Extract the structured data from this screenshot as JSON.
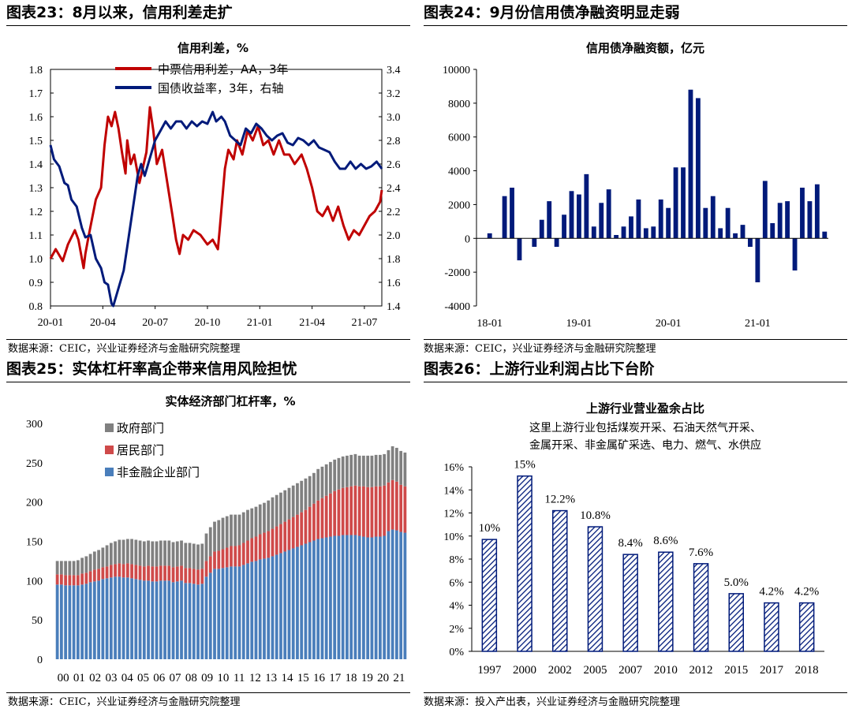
{
  "panels": [
    {
      "title": "图表23：8月以来，信用利差走扩",
      "source": "数据来源：CEIC，兴业证券经济与金融研究院整理"
    },
    {
      "title": "图表24：9月份信用债净融资明显走弱",
      "source": "数据来源：CEIC，兴业证券经济与金融研究院整理"
    },
    {
      "title": "图表25：实体杠杆率高企带来信用风险担忧",
      "source": "数据来源：CEIC，兴业证券经济与金融研究院整理"
    },
    {
      "title": "图表26：上游行业利润占比下台阶",
      "source": "数据来源：投入产出表，兴业证券经济与金融研究院整理"
    }
  ],
  "chart_data": [
    {
      "type": "line",
      "title": "信用利差，%",
      "x_ticks": [
        "20-01",
        "20-04",
        "20-07",
        "20-10",
        "21-01",
        "21-04",
        "21-07"
      ],
      "y_left": {
        "ylim": [
          0.8,
          1.8
        ],
        "ticks": [
          "0.8",
          "0.9",
          "1.0",
          "1.1",
          "1.2",
          "1.3",
          "1.4",
          "1.5",
          "1.6",
          "1.7",
          "1.8"
        ]
      },
      "y_right": {
        "ylim": [
          1.4,
          3.4
        ],
        "ticks": [
          "1.4",
          "1.6",
          "1.8",
          "2.0",
          "2.2",
          "2.4",
          "2.6",
          "2.8",
          "3.0",
          "3.2",
          "3.4"
        ]
      },
      "series": [
        {
          "name": "中票信用利差，AA，3年",
          "axis": "left",
          "color": "#c00000",
          "points": [
            [
              0,
              1.0
            ],
            [
              0.3,
              1.04
            ],
            [
              0.7,
              0.99
            ],
            [
              1.0,
              1.06
            ],
            [
              1.4,
              1.12
            ],
            [
              1.6,
              1.08
            ],
            [
              1.9,
              0.96
            ],
            [
              2.0,
              1.02
            ],
            [
              2.2,
              1.1
            ],
            [
              2.6,
              1.25
            ],
            [
              2.9,
              1.3
            ],
            [
              3.1,
              1.48
            ],
            [
              3.3,
              1.6
            ],
            [
              3.5,
              1.56
            ],
            [
              3.7,
              1.62
            ],
            [
              3.9,
              1.55
            ],
            [
              4.1,
              1.45
            ],
            [
              4.3,
              1.36
            ],
            [
              4.4,
              1.5
            ],
            [
              4.6,
              1.4
            ],
            [
              4.8,
              1.44
            ],
            [
              5.1,
              1.32
            ],
            [
              5.5,
              1.45
            ],
            [
              5.7,
              1.64
            ],
            [
              5.9,
              1.54
            ],
            [
              6.1,
              1.4
            ],
            [
              6.4,
              1.46
            ],
            [
              6.7,
              1.32
            ],
            [
              7.0,
              1.18
            ],
            [
              7.2,
              1.08
            ],
            [
              7.4,
              1.02
            ],
            [
              7.6,
              1.1
            ],
            [
              7.9,
              1.08
            ],
            [
              8.2,
              1.12
            ],
            [
              8.6,
              1.1
            ],
            [
              9.0,
              1.06
            ],
            [
              9.3,
              1.08
            ],
            [
              9.6,
              1.04
            ],
            [
              9.7,
              1.12
            ],
            [
              10.0,
              1.38
            ],
            [
              10.2,
              1.46
            ],
            [
              10.5,
              1.42
            ],
            [
              10.7,
              1.5
            ],
            [
              11.0,
              1.44
            ],
            [
              11.3,
              1.54
            ],
            [
              11.6,
              1.5
            ],
            [
              11.9,
              1.56
            ],
            [
              12.2,
              1.48
            ],
            [
              12.5,
              1.5
            ],
            [
              12.8,
              1.44
            ],
            [
              13.1,
              1.5
            ],
            [
              13.4,
              1.44
            ],
            [
              13.7,
              1.44
            ],
            [
              14.0,
              1.4
            ],
            [
              14.4,
              1.44
            ],
            [
              14.7,
              1.38
            ],
            [
              15.0,
              1.3
            ],
            [
              15.3,
              1.2
            ],
            [
              15.6,
              1.18
            ],
            [
              15.9,
              1.22
            ],
            [
              16.2,
              1.16
            ],
            [
              16.5,
              1.22
            ],
            [
              16.8,
              1.14
            ],
            [
              17.1,
              1.08
            ],
            [
              17.4,
              1.12
            ],
            [
              17.7,
              1.1
            ],
            [
              18.0,
              1.14
            ],
            [
              18.3,
              1.18
            ],
            [
              18.6,
              1.2
            ],
            [
              18.9,
              1.24
            ],
            [
              19.0,
              1.29
            ]
          ]
        },
        {
          "name": "国债收益率，3年，右轴",
          "axis": "right",
          "color": "#001a7a",
          "points": [
            [
              0,
              2.76
            ],
            [
              0.2,
              2.64
            ],
            [
              0.5,
              2.58
            ],
            [
              0.8,
              2.44
            ],
            [
              1.0,
              2.42
            ],
            [
              1.2,
              2.3
            ],
            [
              1.5,
              2.24
            ],
            [
              1.8,
              2.06
            ],
            [
              2.0,
              1.98
            ],
            [
              2.3,
              2.0
            ],
            [
              2.6,
              1.8
            ],
            [
              2.9,
              1.72
            ],
            [
              3.1,
              1.6
            ],
            [
              3.3,
              1.58
            ],
            [
              3.5,
              1.42
            ],
            [
              3.6,
              1.4
            ],
            [
              3.8,
              1.5
            ],
            [
              4.0,
              1.6
            ],
            [
              4.2,
              1.7
            ],
            [
              4.4,
              1.9
            ],
            [
              4.6,
              2.1
            ],
            [
              4.8,
              2.3
            ],
            [
              5.0,
              2.5
            ],
            [
              5.2,
              2.6
            ],
            [
              5.4,
              2.5
            ],
            [
              5.6,
              2.6
            ],
            [
              5.8,
              2.7
            ],
            [
              6.0,
              2.8
            ],
            [
              6.3,
              2.88
            ],
            [
              6.6,
              2.96
            ],
            [
              6.9,
              2.9
            ],
            [
              7.2,
              2.96
            ],
            [
              7.5,
              2.96
            ],
            [
              7.8,
              2.9
            ],
            [
              8.1,
              2.96
            ],
            [
              8.4,
              2.92
            ],
            [
              8.7,
              2.96
            ],
            [
              9.0,
              2.94
            ],
            [
              9.3,
              3.04
            ],
            [
              9.5,
              2.96
            ],
            [
              9.8,
              3.0
            ],
            [
              10.0,
              2.96
            ],
            [
              10.3,
              2.84
            ],
            [
              10.6,
              2.8
            ],
            [
              10.9,
              2.76
            ],
            [
              11.2,
              2.9
            ],
            [
              11.5,
              2.86
            ],
            [
              11.8,
              2.94
            ],
            [
              12.1,
              2.9
            ],
            [
              12.4,
              2.84
            ],
            [
              12.7,
              2.8
            ],
            [
              13.0,
              2.84
            ],
            [
              13.3,
              2.86
            ],
            [
              13.6,
              2.78
            ],
            [
              13.9,
              2.76
            ],
            [
              14.2,
              2.82
            ],
            [
              14.5,
              2.8
            ],
            [
              14.8,
              2.76
            ],
            [
              15.1,
              2.8
            ],
            [
              15.4,
              2.74
            ],
            [
              15.7,
              2.72
            ],
            [
              16.0,
              2.7
            ],
            [
              16.3,
              2.62
            ],
            [
              16.6,
              2.56
            ],
            [
              16.9,
              2.56
            ],
            [
              17.2,
              2.62
            ],
            [
              17.5,
              2.56
            ],
            [
              17.8,
              2.6
            ],
            [
              18.1,
              2.56
            ],
            [
              18.4,
              2.58
            ],
            [
              18.7,
              2.62
            ],
            [
              19.0,
              2.56
            ]
          ]
        }
      ]
    },
    {
      "type": "bar",
      "title": "信用债净融资额，亿元",
      "x_ticks": [
        "18-01",
        "19-01",
        "20-01",
        "21-01"
      ],
      "ylim": [
        -4000,
        10000
      ],
      "y_ticks": [
        "-4000",
        "-2000",
        "0",
        "2000",
        "4000",
        "6000",
        "8000",
        "10000"
      ],
      "color": "#001a7a",
      "values": [
        300,
        0,
        2500,
        3000,
        -1300,
        0,
        -500,
        1100,
        2200,
        -500,
        1400,
        2800,
        2600,
        3800,
        700,
        2100,
        2900,
        200,
        700,
        1300,
        2300,
        600,
        700,
        2300,
        1800,
        4200,
        4200,
        8800,
        8300,
        1800,
        2500,
        600,
        1800,
        300,
        800,
        -500,
        -2600,
        3400,
        900,
        2100,
        2200,
        -1900,
        3000,
        2200,
        3200,
        400
      ]
    },
    {
      "type": "bar",
      "stacked": true,
      "title": "实体经济部门杠杆率，%",
      "x_ticks": [
        "00",
        "01",
        "02",
        "03",
        "04",
        "05",
        "06",
        "07",
        "08",
        "09",
        "10",
        "11",
        "12",
        "13",
        "14",
        "15",
        "16",
        "17",
        "18",
        "19",
        "20",
        "21"
      ],
      "ylim": [
        0,
        300
      ],
      "y_ticks": [
        "0",
        "50",
        "100",
        "150",
        "200",
        "250",
        "300"
      ],
      "series": [
        {
          "name": "非金融企业部门",
          "color": "#4a7ebb",
          "values": [
            95,
            95,
            94,
            94,
            94,
            94,
            95,
            96,
            98,
            99,
            100,
            102,
            103,
            104,
            105,
            105,
            104,
            104,
            103,
            102,
            101,
            100,
            100,
            99,
            99,
            100,
            100,
            100,
            98,
            99,
            100,
            97,
            97,
            96,
            95,
            96,
            105,
            110,
            115,
            115,
            116,
            117,
            118,
            118,
            118,
            120,
            122,
            124,
            125,
            127,
            128,
            129,
            131,
            133,
            135,
            137,
            139,
            141,
            143,
            145,
            147,
            149,
            151,
            153,
            154,
            155,
            156,
            157,
            157,
            158,
            158,
            158,
            158,
            157,
            156,
            155,
            155,
            156,
            156,
            157,
            163,
            165,
            164,
            162,
            161
          ]
        },
        {
          "name": "居民部门",
          "color": "#cf4a4a",
          "values": [
            13,
            13,
            13,
            13,
            13,
            13,
            14,
            14,
            14,
            15,
            15,
            15,
            15,
            16,
            16,
            17,
            17,
            18,
            18,
            18,
            18,
            18,
            19,
            19,
            19,
            19,
            19,
            19,
            19,
            19,
            19,
            19,
            19,
            19,
            19,
            19,
            20,
            21,
            22,
            23,
            24,
            25,
            26,
            26,
            27,
            28,
            29,
            30,
            31,
            32,
            33,
            34,
            35,
            36,
            37,
            38,
            39,
            40,
            41,
            42,
            43,
            45,
            47,
            49,
            51,
            53,
            55,
            57,
            59,
            60,
            61,
            62,
            63,
            63,
            64,
            64,
            64,
            64,
            64,
            64,
            62,
            63,
            62,
            60,
            59
          ]
        },
        {
          "name": "政府部门",
          "color": "#808080",
          "values": [
            17,
            17,
            18,
            18,
            18,
            19,
            20,
            21,
            22,
            23,
            24,
            25,
            27,
            28,
            29,
            30,
            31,
            31,
            32,
            32,
            32,
            32,
            32,
            32,
            32,
            32,
            32,
            32,
            32,
            32,
            32,
            32,
            32,
            32,
            32,
            32,
            35,
            37,
            38,
            39,
            40,
            40,
            40,
            40,
            39,
            39,
            39,
            38,
            38,
            38,
            38,
            39,
            40,
            40,
            40,
            40,
            40,
            40,
            40,
            40,
            40,
            39,
            39,
            40,
            40,
            40,
            40,
            40,
            40,
            40,
            40,
            40,
            40,
            39,
            39,
            40,
            40,
            40,
            40,
            40,
            41,
            43,
            43,
            43,
            43
          ]
        }
      ]
    },
    {
      "type": "bar",
      "title": "上游行业营业盈余占比",
      "subtitle": [
        "这里上游行业包括煤炭开采、石油天然气开采、",
        "金属开采、非金属矿采选、电力、燃气、水供应"
      ],
      "categories": [
        "1997",
        "2000",
        "2002",
        "2005",
        "2007",
        "2010",
        "2012",
        "2015",
        "2017",
        "2018"
      ],
      "values": [
        9.7,
        15.2,
        12.2,
        10.8,
        8.4,
        8.6,
        7.6,
        5.0,
        4.2,
        4.2
      ],
      "data_labels": [
        "10%",
        "15%",
        "12.2%",
        "10.8%",
        "8.4%",
        "8.6%",
        "7.6%",
        "5.0%",
        "4.2%",
        "4.2%"
      ],
      "ylim": [
        0,
        16
      ],
      "y_ticks": [
        "0%",
        "2%",
        "4%",
        "6%",
        "8%",
        "10%",
        "12%",
        "14%",
        "16%"
      ],
      "color": "#001a7a",
      "pattern": "diagonal-hatch"
    }
  ]
}
